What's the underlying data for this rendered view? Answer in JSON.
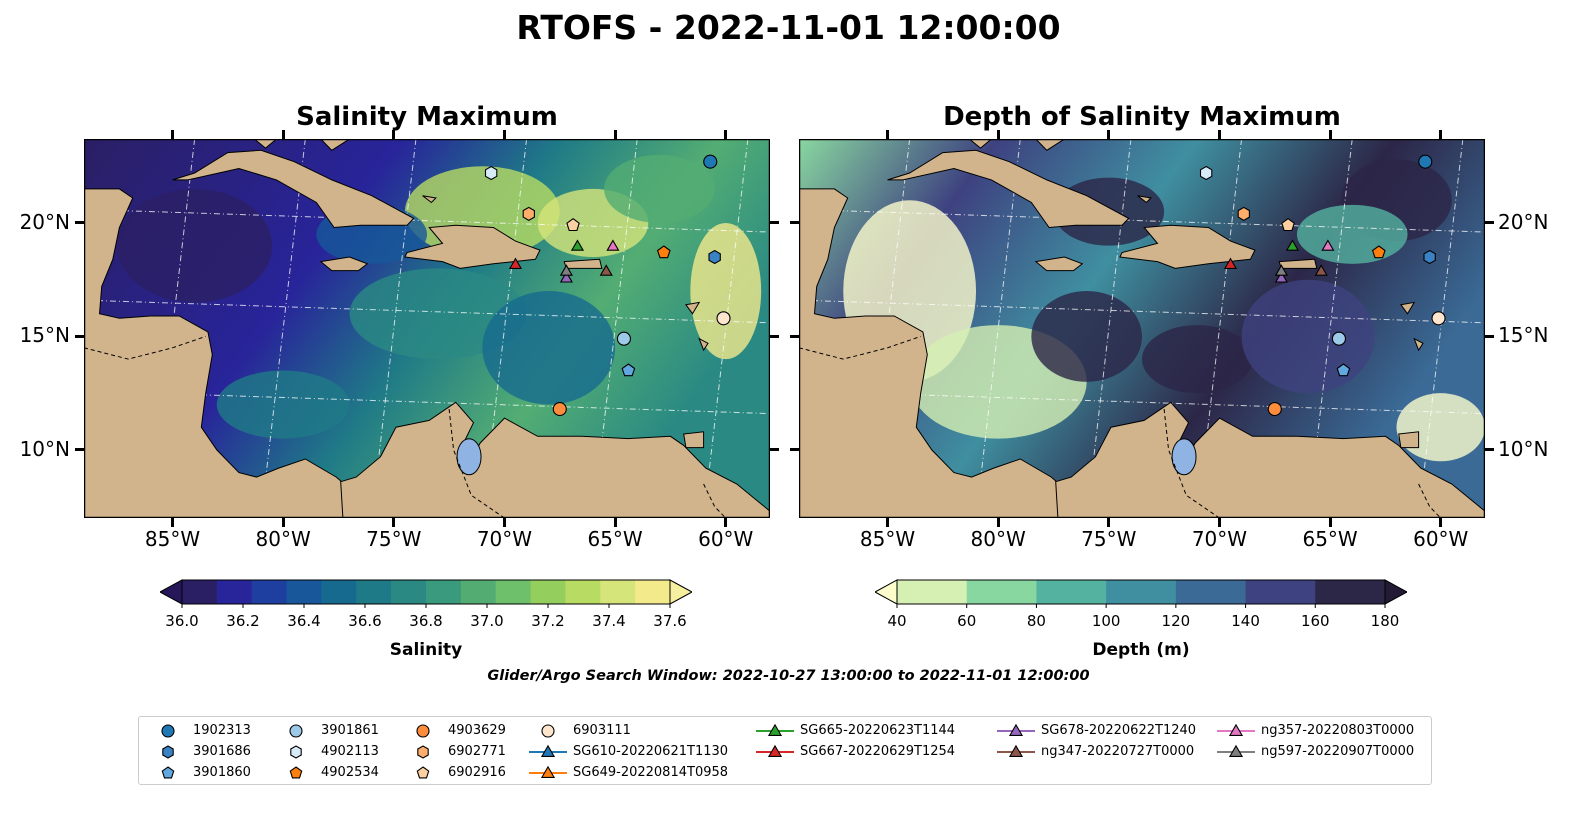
{
  "figure": {
    "suptitle": "RTOFS - 2022-11-01 12:00:00",
    "footnote": "Glider/Argo Search Window: 2022-10-27 13:00:00 to 2022-11-01 12:00:00"
  },
  "map_extent": {
    "lon": [
      -89,
      -58
    ],
    "lat": [
      7,
      23.7
    ]
  },
  "panels": [
    {
      "title": "Salinity Maximum",
      "colorbar": {
        "label": "Salinity",
        "ticks": [
          "36.0",
          "36.2",
          "36.4",
          "36.6",
          "36.8",
          "37.0",
          "37.2",
          "37.4",
          "37.6"
        ],
        "colors": [
          "#2a1f64",
          "#28249a",
          "#1f3fa0",
          "#17579a",
          "#176a8f",
          "#1f7a87",
          "#2a8a83",
          "#3a9a7d",
          "#53ad73",
          "#6fc06a",
          "#94cf5e",
          "#b8dc63",
          "#d6e57a",
          "#f3ea8c"
        ],
        "extend_low": "#25175a",
        "extend_high": "#f6efa0"
      }
    },
    {
      "title": "Depth of Salinity Maximum",
      "colorbar": {
        "label": "Depth (m)",
        "ticks": [
          "40",
          "60",
          "80",
          "100",
          "120",
          "140",
          "160",
          "180"
        ],
        "colors": [
          "#d6efb3",
          "#89d7a0",
          "#54b3a0",
          "#3f8fa0",
          "#3a6a95",
          "#3e4280",
          "#2c2647"
        ],
        "extend_low": "#fdfdcc",
        "extend_high": "#231b36"
      }
    }
  ],
  "axes": {
    "x_ticks": [
      "85°W",
      "80°W",
      "75°W",
      "70°W",
      "65°W",
      "60°W"
    ],
    "y_ticks": [
      "20°N",
      "15°N",
      "10°N"
    ]
  },
  "legend": [
    {
      "label": "1902313",
      "color": "#1f77b4",
      "marker": "circle"
    },
    {
      "label": "3901686",
      "color": "#3a82c4",
      "marker": "hexagon"
    },
    {
      "label": "3901860",
      "color": "#62a8e0",
      "marker": "pentagon"
    },
    {
      "label": "3901861",
      "color": "#9ecae9",
      "marker": "circle"
    },
    {
      "label": "4902113",
      "color": "#d6eaf8",
      "marker": "hexagon"
    },
    {
      "label": "4902534",
      "color": "#ff7f0e",
      "marker": "pentagon"
    },
    {
      "label": "4903629",
      "color": "#fd8d3c",
      "marker": "circle"
    },
    {
      "label": "6902771",
      "color": "#fdae6b",
      "marker": "hexagon"
    },
    {
      "label": "6902916",
      "color": "#fdd0a2",
      "marker": "pentagon"
    },
    {
      "label": "6903111",
      "color": "#fee6ce",
      "marker": "circle"
    },
    {
      "label": "SG610-20220621T1130",
      "color": "#1f77b4",
      "marker": "triangle"
    },
    {
      "label": "SG649-20220814T0958",
      "color": "#ff7f0e",
      "marker": "triangle"
    },
    {
      "label": "SG665-20220623T1144",
      "color": "#2ca02c",
      "marker": "triangle"
    },
    {
      "label": "SG667-20220629T1254",
      "color": "#d62728",
      "marker": "triangle"
    },
    {
      "label": "SG678-20220622T1240",
      "color": "#9467bd",
      "marker": "triangle"
    },
    {
      "label": "ng347-20220727T0000",
      "color": "#8c564b",
      "marker": "triangle"
    },
    {
      "label": "ng357-20220803T0000",
      "color": "#e377c2",
      "marker": "triangle"
    },
    {
      "label": "ng597-20220907T0000",
      "color": "#7f7f7f",
      "marker": "triangle"
    }
  ],
  "observations": [
    {
      "id": "1902313",
      "lon": -60.7,
      "lat": 22.7
    },
    {
      "id": "4902113",
      "lon": -70.6,
      "lat": 22.2
    },
    {
      "id": "6902771",
      "lon": -68.9,
      "lat": 20.4
    },
    {
      "id": "6902916",
      "lon": -66.9,
      "lat": 19.9
    },
    {
      "id": "4902534",
      "lon": -62.8,
      "lat": 18.7
    },
    {
      "id": "3901686",
      "lon": -60.5,
      "lat": 18.5
    },
    {
      "id": "6903111",
      "lon": -60.1,
      "lat": 15.8
    },
    {
      "id": "3901861",
      "lon": -64.6,
      "lat": 14.9
    },
    {
      "id": "3901860",
      "lon": -64.4,
      "lat": 13.5
    },
    {
      "id": "4903629",
      "lon": -67.5,
      "lat": 11.8
    },
    {
      "id": "SG665-20220623T1144",
      "lon": -66.7,
      "lat": 19.0
    },
    {
      "id": "ng357-20220803T0000",
      "lon": -65.1,
      "lat": 19.0
    },
    {
      "id": "SG667-20220629T1254",
      "lon": -69.5,
      "lat": 18.2
    },
    {
      "id": "SG678-20220622T1240",
      "lon": -67.2,
      "lat": 17.6
    },
    {
      "id": "ng597-20220907T0000",
      "lon": -67.2,
      "lat": 17.9
    },
    {
      "id": "ng347-20220727T0000",
      "lon": -65.4,
      "lat": 17.9
    }
  ]
}
